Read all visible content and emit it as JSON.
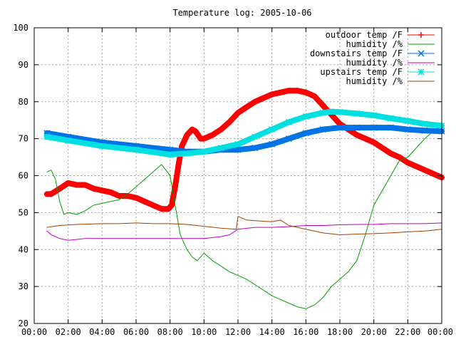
{
  "chart_data": {
    "type": "line",
    "title": "Temperature log: 2005-10-06",
    "xlabel": "",
    "ylabel": "",
    "xlim": [
      0,
      24
    ],
    "ylim": [
      20,
      100
    ],
    "x_ticks": [
      "00:00",
      "02:00",
      "04:00",
      "06:00",
      "08:00",
      "10:00",
      "12:00",
      "14:00",
      "16:00",
      "18:00",
      "20:00",
      "22:00",
      "00:00"
    ],
    "y_ticks": [
      "20",
      "30",
      "40",
      "50",
      "60",
      "70",
      "80",
      "90",
      "100"
    ],
    "grid": true,
    "legend_position": "top-right",
    "series": [
      {
        "name": "outdoor temp /F",
        "color": "#ff0000",
        "marker": "plus",
        "x": [
          0.75,
          1.0,
          1.5,
          2.0,
          2.5,
          3.0,
          3.5,
          4.0,
          4.5,
          5.0,
          5.5,
          6.0,
          6.5,
          7.0,
          7.5,
          7.9,
          8.1,
          8.3,
          8.5,
          8.7,
          9.0,
          9.3,
          9.5,
          9.8,
          10.0,
          10.5,
          11.0,
          11.5,
          12.0,
          12.5,
          13.0,
          13.5,
          14.0,
          14.5,
          15.0,
          15.5,
          16.0,
          16.5,
          17.0,
          17.5,
          18.0,
          18.5,
          19.0,
          19.5,
          20.0,
          20.5,
          21.0,
          21.5,
          22.0,
          22.5,
          23.0,
          23.5,
          24.0
        ],
        "y": [
          55,
          55,
          56.5,
          58,
          57.5,
          57.5,
          56.5,
          56,
          55.5,
          54.5,
          54.5,
          54,
          53,
          52,
          51,
          51,
          52,
          57,
          63,
          68,
          71,
          72.5,
          72,
          70,
          70,
          71,
          72.5,
          74.5,
          77,
          78.5,
          80,
          81,
          82,
          82.5,
          83,
          83,
          82.5,
          81.5,
          79,
          76.5,
          74,
          72.5,
          71,
          70,
          69,
          67.5,
          66,
          65,
          63.5,
          62.5,
          61.5,
          60.5,
          59.5
        ]
      },
      {
        "name": "humidity /%",
        "color": "#00a000",
        "marker": "none",
        "x": [
          0.75,
          1.0,
          1.25,
          1.5,
          1.75,
          2.0,
          2.5,
          3.0,
          3.5,
          4.0,
          4.5,
          5.0,
          5.5,
          6.0,
          6.5,
          7.0,
          7.5,
          8.0,
          8.3,
          8.6,
          9.0,
          9.3,
          9.6,
          10.0,
          10.5,
          11.0,
          11.5,
          12.0,
          12.5,
          13.0,
          13.5,
          14.0,
          14.5,
          15.0,
          15.5,
          16.0,
          16.5,
          17.0,
          17.5,
          18.0,
          18.5,
          19.0,
          19.5,
          20.0,
          20.5,
          21.0,
          21.5,
          22.0,
          22.5,
          23.0,
          23.5,
          24.0
        ],
        "y": [
          61,
          61.5,
          59,
          53,
          49.5,
          50,
          49.5,
          50.5,
          52,
          52.5,
          53,
          53.5,
          55,
          57,
          59,
          61,
          63,
          60,
          52,
          44,
          40,
          38,
          37,
          39,
          37,
          35.5,
          34,
          33,
          32,
          30.5,
          29,
          27.5,
          26.5,
          25.5,
          24.5,
          24,
          25,
          27,
          30,
          32,
          34,
          37,
          44,
          52,
          56,
          60,
          64,
          65,
          67.5,
          70,
          72,
          74
        ]
      },
      {
        "name": "downstairs temp /F",
        "color": "#0073e6",
        "marker": "x",
        "x": [
          0.75,
          2.0,
          4.0,
          6.0,
          8.0,
          9.0,
          10.0,
          11.0,
          12.0,
          13.0,
          14.0,
          15.0,
          16.0,
          17.0,
          18.0,
          19.0,
          20.0,
          21.0,
          22.0,
          23.0,
          24.0
        ],
        "y": [
          71.5,
          70.5,
          69,
          68,
          67,
          66.5,
          66.5,
          67,
          67,
          67.5,
          68.5,
          70,
          71.5,
          72.5,
          73,
          73,
          73,
          73,
          72.5,
          72.2,
          72
        ]
      },
      {
        "name": "humidity /%",
        "color": "#c000c0",
        "marker": "none",
        "x": [
          0.75,
          1.0,
          1.5,
          2.0,
          3.0,
          4.0,
          5.0,
          6.0,
          7.0,
          8.0,
          9.0,
          10.0,
          11.0,
          11.5,
          12.0,
          13.0,
          14.0,
          15.0,
          16.0,
          17.0,
          18.0,
          19.0,
          20.0,
          21.0,
          22.0,
          23.0,
          24.0
        ],
        "y": [
          45,
          44,
          43,
          42.5,
          43,
          43,
          43,
          43,
          43,
          43,
          43,
          43,
          43.5,
          44,
          45.5,
          46,
          46,
          46.2,
          46.5,
          46.5,
          46.7,
          46.8,
          46.8,
          47,
          47,
          47,
          47.2
        ]
      },
      {
        "name": "upstairs temp /F",
        "color": "#00e0e0",
        "marker": "star",
        "x": [
          0.75,
          2.0,
          4.0,
          6.0,
          8.0,
          9.0,
          10.0,
          11.0,
          12.0,
          13.0,
          14.0,
          15.0,
          16.0,
          17.0,
          17.5,
          18.0,
          19.0,
          20.0,
          21.0,
          22.0,
          23.0,
          24.0
        ],
        "y": [
          70.5,
          69.5,
          68,
          67,
          65.7,
          66,
          66.5,
          67.5,
          68.5,
          70.5,
          72.5,
          74.5,
          76,
          77,
          77.3,
          77.2,
          76.8,
          76.3,
          75.5,
          74.8,
          74,
          73.5
        ]
      },
      {
        "name": "humidity /%",
        "color": "#a04000",
        "marker": "none",
        "x": [
          0.75,
          1.5,
          2.5,
          4.0,
          5.0,
          6.0,
          7.0,
          8.0,
          9.0,
          10.0,
          11.0,
          11.9,
          12.0,
          12.5,
          13.0,
          14.0,
          14.5,
          15.0,
          16.0,
          17.0,
          18.0,
          19.0,
          20.0,
          21.0,
          22.0,
          23.0,
          24.0
        ],
        "y": [
          46,
          46.5,
          46.8,
          47,
          47,
          47.2,
          47,
          47,
          46.8,
          46.3,
          45.8,
          45.5,
          49,
          48,
          47.8,
          47.5,
          48,
          46.5,
          45.5,
          44.5,
          44,
          44.2,
          44.3,
          44.5,
          44.8,
          45,
          45.5
        ]
      }
    ]
  }
}
